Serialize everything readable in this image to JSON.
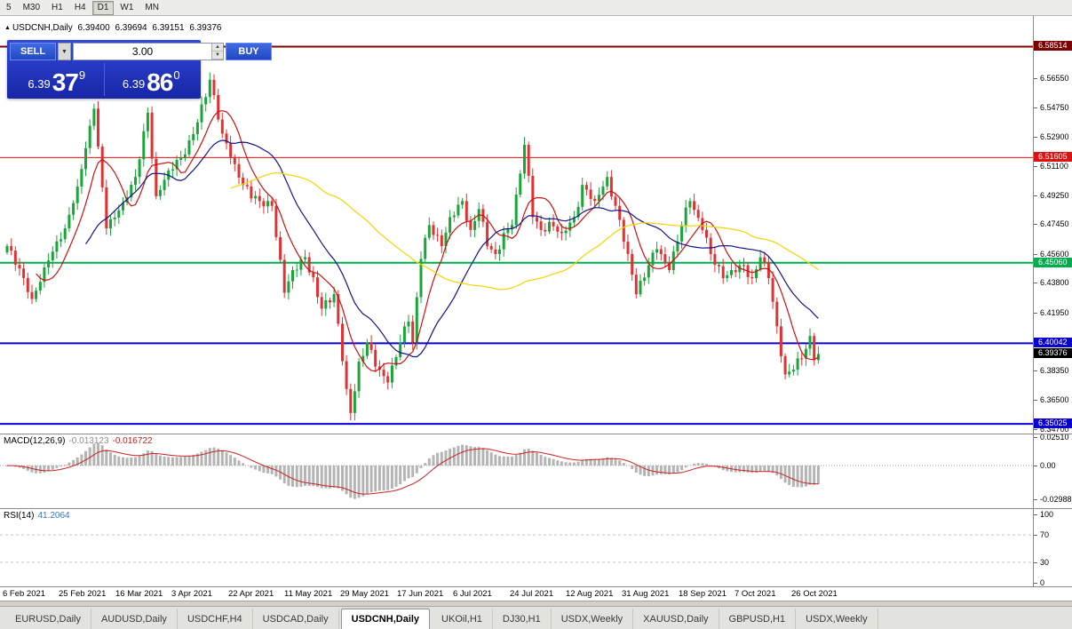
{
  "toolbar": {
    "timeframes": [
      "5",
      "M30",
      "H1",
      "H4",
      "D1",
      "W1",
      "MN"
    ],
    "active_timeframe": "D1"
  },
  "header": {
    "symbol": "USDCNH,Daily"
  },
  "trade": {
    "sell_label": "SELL",
    "buy_label": "BUY",
    "volume": "3.00",
    "sell_small": "6.39",
    "sell_big": "37",
    "sell_sup": "9",
    "buy_small": "6.39",
    "buy_big": "86",
    "buy_sup": "0"
  },
  "chart_data": {
    "type": "candlestick",
    "symbol": "USDCNH",
    "timeframe": "Daily",
    "ohlc_current": {
      "open": "6.39400",
      "high": "6.39694",
      "low": "6.39151",
      "close": "6.39376"
    },
    "price_axis_ticks": [
      "6.56550",
      "6.54750",
      "6.52900",
      "6.51100",
      "6.49250",
      "6.47450",
      "6.45600",
      "6.43800",
      "6.41950",
      "6.40150",
      "6.38350",
      "6.36500",
      "6.34700"
    ],
    "levels": [
      {
        "price": 6.58514,
        "label": "6.58514",
        "color": "#7d0000",
        "width": 2
      },
      {
        "price": 6.51605,
        "label": "6.51605",
        "color": "#dd1111",
        "width": 1
      },
      {
        "price": 6.4506,
        "label": "6.45060",
        "color": "#00ad4e",
        "width": 2
      },
      {
        "price": 6.40042,
        "label": "6.40042",
        "color": "#0a00d0",
        "width": 2
      },
      {
        "price": 6.39376,
        "label": "6.39376",
        "color": "#000000",
        "width": 0
      },
      {
        "price": 6.35025,
        "label": "6.35025",
        "color": "#0a00d0",
        "width": 2
      }
    ],
    "candle_count": 197,
    "close_anchors": [
      [
        0,
        6.461
      ],
      [
        3,
        6.447
      ],
      [
        6,
        6.428
      ],
      [
        10,
        6.452
      ],
      [
        14,
        6.472
      ],
      [
        17,
        6.498
      ],
      [
        21,
        6.5465
      ],
      [
        24,
        6.472
      ],
      [
        28,
        6.488
      ],
      [
        31,
        6.504
      ],
      [
        34,
        6.544
      ],
      [
        36,
        6.492
      ],
      [
        39,
        6.508
      ],
      [
        43,
        6.518
      ],
      [
        46,
        6.538
      ],
      [
        49,
        6.5645
      ],
      [
        52,
        6.531
      ],
      [
        55,
        6.512
      ],
      [
        57,
        6.499
      ],
      [
        61,
        6.489
      ],
      [
        64,
        6.486
      ],
      [
        67,
        6.432
      ],
      [
        69,
        6.446
      ],
      [
        72,
        6.454
      ],
      [
        76,
        6.422
      ],
      [
        79,
        6.431
      ],
      [
        82,
        6.372
      ],
      [
        83,
        6.357
      ],
      [
        85,
        6.389
      ],
      [
        87,
        6.401
      ],
      [
        89,
        6.386
      ],
      [
        92,
        6.376
      ],
      [
        95,
        6.401
      ],
      [
        97,
        6.414
      ],
      [
        98,
        6.401
      ],
      [
        100,
        6.453
      ],
      [
        102,
        6.474
      ],
      [
        105,
        6.461
      ],
      [
        107,
        6.479
      ],
      [
        110,
        6.489
      ],
      [
        112,
        6.471
      ],
      [
        114,
        6.484
      ],
      [
        116,
        6.461
      ],
      [
        118,
        6.456
      ],
      [
        120,
        6.469
      ],
      [
        122,
        6.474
      ],
      [
        125,
        6.524
      ],
      [
        127,
        6.479
      ],
      [
        129,
        6.471
      ],
      [
        131,
        6.476
      ],
      [
        134,
        6.469
      ],
      [
        137,
        6.479
      ],
      [
        139,
        6.499
      ],
      [
        142,
        6.489
      ],
      [
        145,
        6.504
      ],
      [
        147,
        6.486
      ],
      [
        150,
        6.456
      ],
      [
        152,
        6.431
      ],
      [
        155,
        6.449
      ],
      [
        157,
        6.459
      ],
      [
        160,
        6.446
      ],
      [
        163,
        6.474
      ],
      [
        165,
        6.489
      ],
      [
        168,
        6.471
      ],
      [
        170,
        6.456
      ],
      [
        173,
        6.441
      ],
      [
        175,
        6.446
      ],
      [
        178,
        6.449
      ],
      [
        180,
        6.441
      ],
      [
        182,
        6.454
      ],
      [
        184,
        6.441
      ],
      [
        186,
        6.411
      ],
      [
        188,
        6.381
      ],
      [
        190,
        6.384
      ],
      [
        192,
        6.391
      ],
      [
        194,
        6.405
      ],
      [
        195,
        6.39
      ],
      [
        196,
        6.3938
      ]
    ],
    "moving_averages": [
      {
        "period": 8,
        "color": "#cc1111"
      },
      {
        "period": 20,
        "color": "#141488"
      },
      {
        "period": 55,
        "color": "#f5d400"
      }
    ],
    "colors": {
      "up": "#1aa43a",
      "down": "#e03232"
    },
    "macd": {
      "label": "MACD(12,26,9)",
      "value": "-0.013123",
      "signal_value": "-0.016722",
      "axis": [
        "0.02510",
        "0.00",
        "-0.02988"
      ],
      "hist_color": "#b4b4b4",
      "signal_color": "#cc2222"
    },
    "rsi": {
      "label": "RSI(14)",
      "value": "41.2064",
      "axis": [
        "100",
        "70",
        "30",
        "0"
      ],
      "levels": [
        70,
        30
      ],
      "color": "#3a78c2"
    },
    "time_axis": [
      "6 Feb 2021",
      "25 Feb 2021",
      "16 Mar 2021",
      "3 Apr 2021",
      "22 Apr 2021",
      "11 May 2021",
      "29 May 2021",
      "17 Jun 2021",
      "6 Jul 2021",
      "24 Jul 2021",
      "12 Aug 2021",
      "31 Aug 2021",
      "18 Sep 2021",
      "7 Oct 2021",
      "26 Oct 2021"
    ]
  },
  "tabs": [
    {
      "label": "EURUSD,Daily",
      "active": false
    },
    {
      "label": "AUDUSD,Daily",
      "active": false
    },
    {
      "label": "USDCHF,H4",
      "active": false
    },
    {
      "label": "USDCAD,Daily",
      "active": false
    },
    {
      "label": "USDCNH,Daily",
      "active": true
    },
    {
      "label": "UKOil,H1",
      "active": false
    },
    {
      "label": "DJ30,H1",
      "active": false
    },
    {
      "label": "USDX,Weekly",
      "active": false
    },
    {
      "label": "XAUUSD,Daily",
      "active": false
    },
    {
      "label": "GBPUSD,H1",
      "active": false
    },
    {
      "label": "USDX,Weekly",
      "active": false
    }
  ]
}
